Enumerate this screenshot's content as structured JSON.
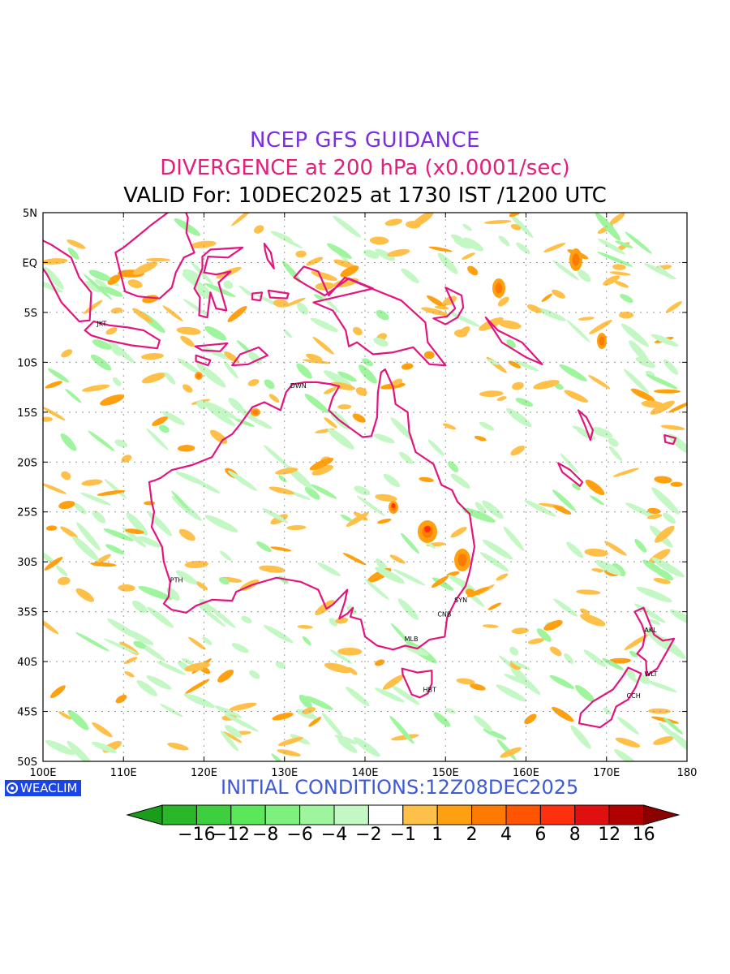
{
  "title": {
    "line1": "NCEP GFS GUIDANCE",
    "line2": "DIVERGENCE at 200 hPa (x0.0001/sec)",
    "line3": "VALID For: 10DEC2025 at 1730 IST /1200 UTC"
  },
  "map": {
    "lon_range": [
      100,
      180
    ],
    "lat_range": [
      -50,
      5
    ],
    "lat_ticks": [
      {
        "lat": 5,
        "label": "5N"
      },
      {
        "lat": 0,
        "label": "EQ"
      },
      {
        "lat": -5,
        "label": "5S"
      },
      {
        "lat": -10,
        "label": "10S"
      },
      {
        "lat": -15,
        "label": "15S"
      },
      {
        "lat": -20,
        "label": "20S"
      },
      {
        "lat": -25,
        "label": "25S"
      },
      {
        "lat": -30,
        "label": "30S"
      },
      {
        "lat": -35,
        "label": "35S"
      },
      {
        "lat": -40,
        "label": "40S"
      },
      {
        "lat": -45,
        "label": "45S"
      },
      {
        "lat": -50,
        "label": "50S"
      }
    ],
    "lon_ticks": [
      {
        "lon": 100,
        "label": "100E"
      },
      {
        "lon": 110,
        "label": "110E"
      },
      {
        "lon": 120,
        "label": "120E"
      },
      {
        "lon": 130,
        "label": "130E"
      },
      {
        "lon": 140,
        "label": "140E"
      },
      {
        "lon": 150,
        "label": "150E"
      },
      {
        "lon": 160,
        "label": "160E"
      },
      {
        "lon": 170,
        "label": "170E"
      },
      {
        "lon": 180,
        "label": "180"
      }
    ],
    "coast_color": "#e2157f",
    "cities": [
      {
        "label": "JKT",
        "lon": 106.8,
        "lat": -6.2
      },
      {
        "label": "DWN",
        "lon": 130.8,
        "lat": -12.4
      },
      {
        "label": "PTH",
        "lon": 115.9,
        "lat": -31.9
      },
      {
        "label": "SYN",
        "lon": 151.2,
        "lat": -33.9
      },
      {
        "label": "CNB",
        "lon": 149.1,
        "lat": -35.3
      },
      {
        "label": "MLB",
        "lon": 145.0,
        "lat": -37.8
      },
      {
        "label": "HBT",
        "lon": 147.3,
        "lat": -42.9
      },
      {
        "label": "AKL",
        "lon": 174.8,
        "lat": -36.9
      },
      {
        "label": "WLT",
        "lon": 174.8,
        "lat": -41.3
      },
      {
        "label": "CCH",
        "lon": 172.6,
        "lat": -43.5
      }
    ]
  },
  "brand": {
    "label": "WEACLIM"
  },
  "initial_conditions": "INITIAL CONDITIONS:12Z08DEC2025",
  "colorbar": {
    "colors": [
      "#1a9d1a",
      "#2ab82a",
      "#3dcf3d",
      "#5ae85a",
      "#7df07d",
      "#9ef59e",
      "#c3f7c3",
      "#ffffff",
      "#ffc04a",
      "#ffa010",
      "#ff7a00",
      "#ff5500",
      "#ff3010",
      "#e01010",
      "#b00000",
      "#8c0000"
    ],
    "labels": [
      "−16",
      "−12",
      "−8",
      "−6",
      "−4",
      "−2",
      "−1",
      "1",
      "2",
      "4",
      "6",
      "8",
      "12",
      "16"
    ]
  }
}
